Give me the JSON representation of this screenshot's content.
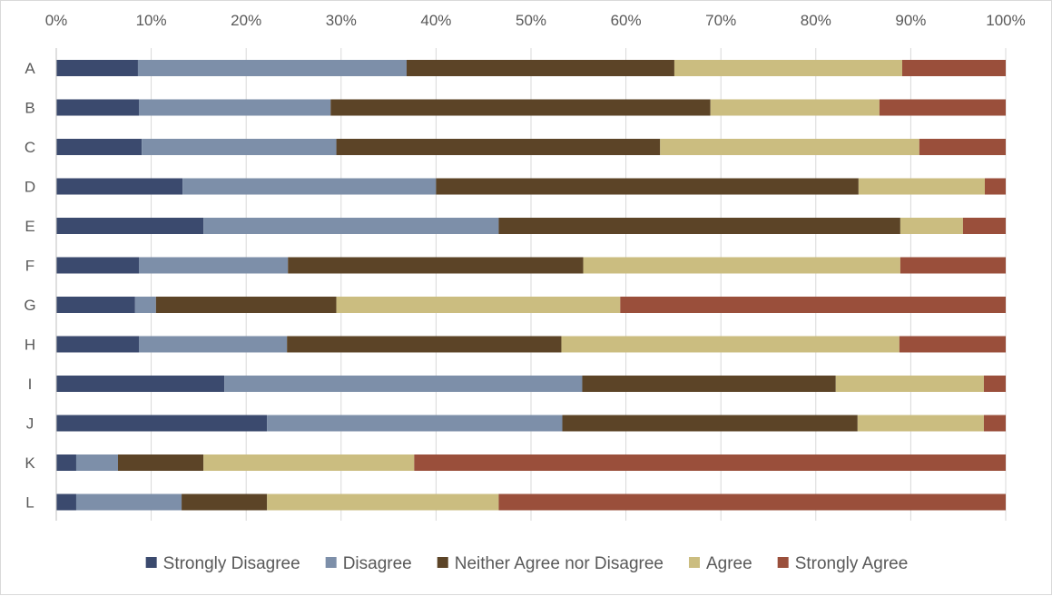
{
  "chart_data": {
    "type": "bar",
    "orientation": "horizontal",
    "stacked": "percent",
    "categories": [
      "A",
      "B",
      "C",
      "D",
      "E",
      "F",
      "G",
      "H",
      "I",
      "J",
      "K",
      "L"
    ],
    "x_ticks": [
      "0%",
      "10%",
      "20%",
      "30%",
      "40%",
      "50%",
      "60%",
      "70%",
      "80%",
      "90%",
      "100%"
    ],
    "xlim": [
      0,
      100
    ],
    "x_axis_position": "top",
    "grid": true,
    "legend_position": "bottom",
    "title": "",
    "xlabel": "",
    "ylabel": "",
    "series": [
      {
        "name": "Strongly Disagree",
        "color": "#3b4a6e",
        "values": [
          8.6,
          8.7,
          9.0,
          13.3,
          15.5,
          8.7,
          8.3,
          8.7,
          17.7,
          22.2,
          2.1,
          2.1
        ]
      },
      {
        "name": "Disagree",
        "color": "#7d8fa9",
        "values": [
          28.3,
          20.2,
          20.5,
          26.7,
          31.1,
          15.7,
          2.2,
          15.6,
          37.7,
          31.1,
          4.4,
          11.1
        ]
      },
      {
        "name": "Neither Agree nor Disagree",
        "color": "#5c4427",
        "values": [
          28.2,
          40.0,
          34.1,
          44.5,
          42.3,
          31.1,
          19.0,
          28.9,
          26.7,
          31.1,
          9.0,
          9.0
        ]
      },
      {
        "name": "Agree",
        "color": "#cbbd80",
        "values": [
          24.0,
          17.8,
          27.3,
          13.3,
          6.6,
          33.4,
          29.9,
          35.6,
          15.6,
          13.3,
          22.2,
          24.4
        ]
      },
      {
        "name": "Strongly Agree",
        "color": "#9a4f3b",
        "values": [
          10.9,
          13.3,
          9.1,
          2.2,
          4.5,
          11.1,
          40.6,
          11.2,
          2.3,
          2.3,
          62.3,
          53.4
        ]
      }
    ]
  }
}
